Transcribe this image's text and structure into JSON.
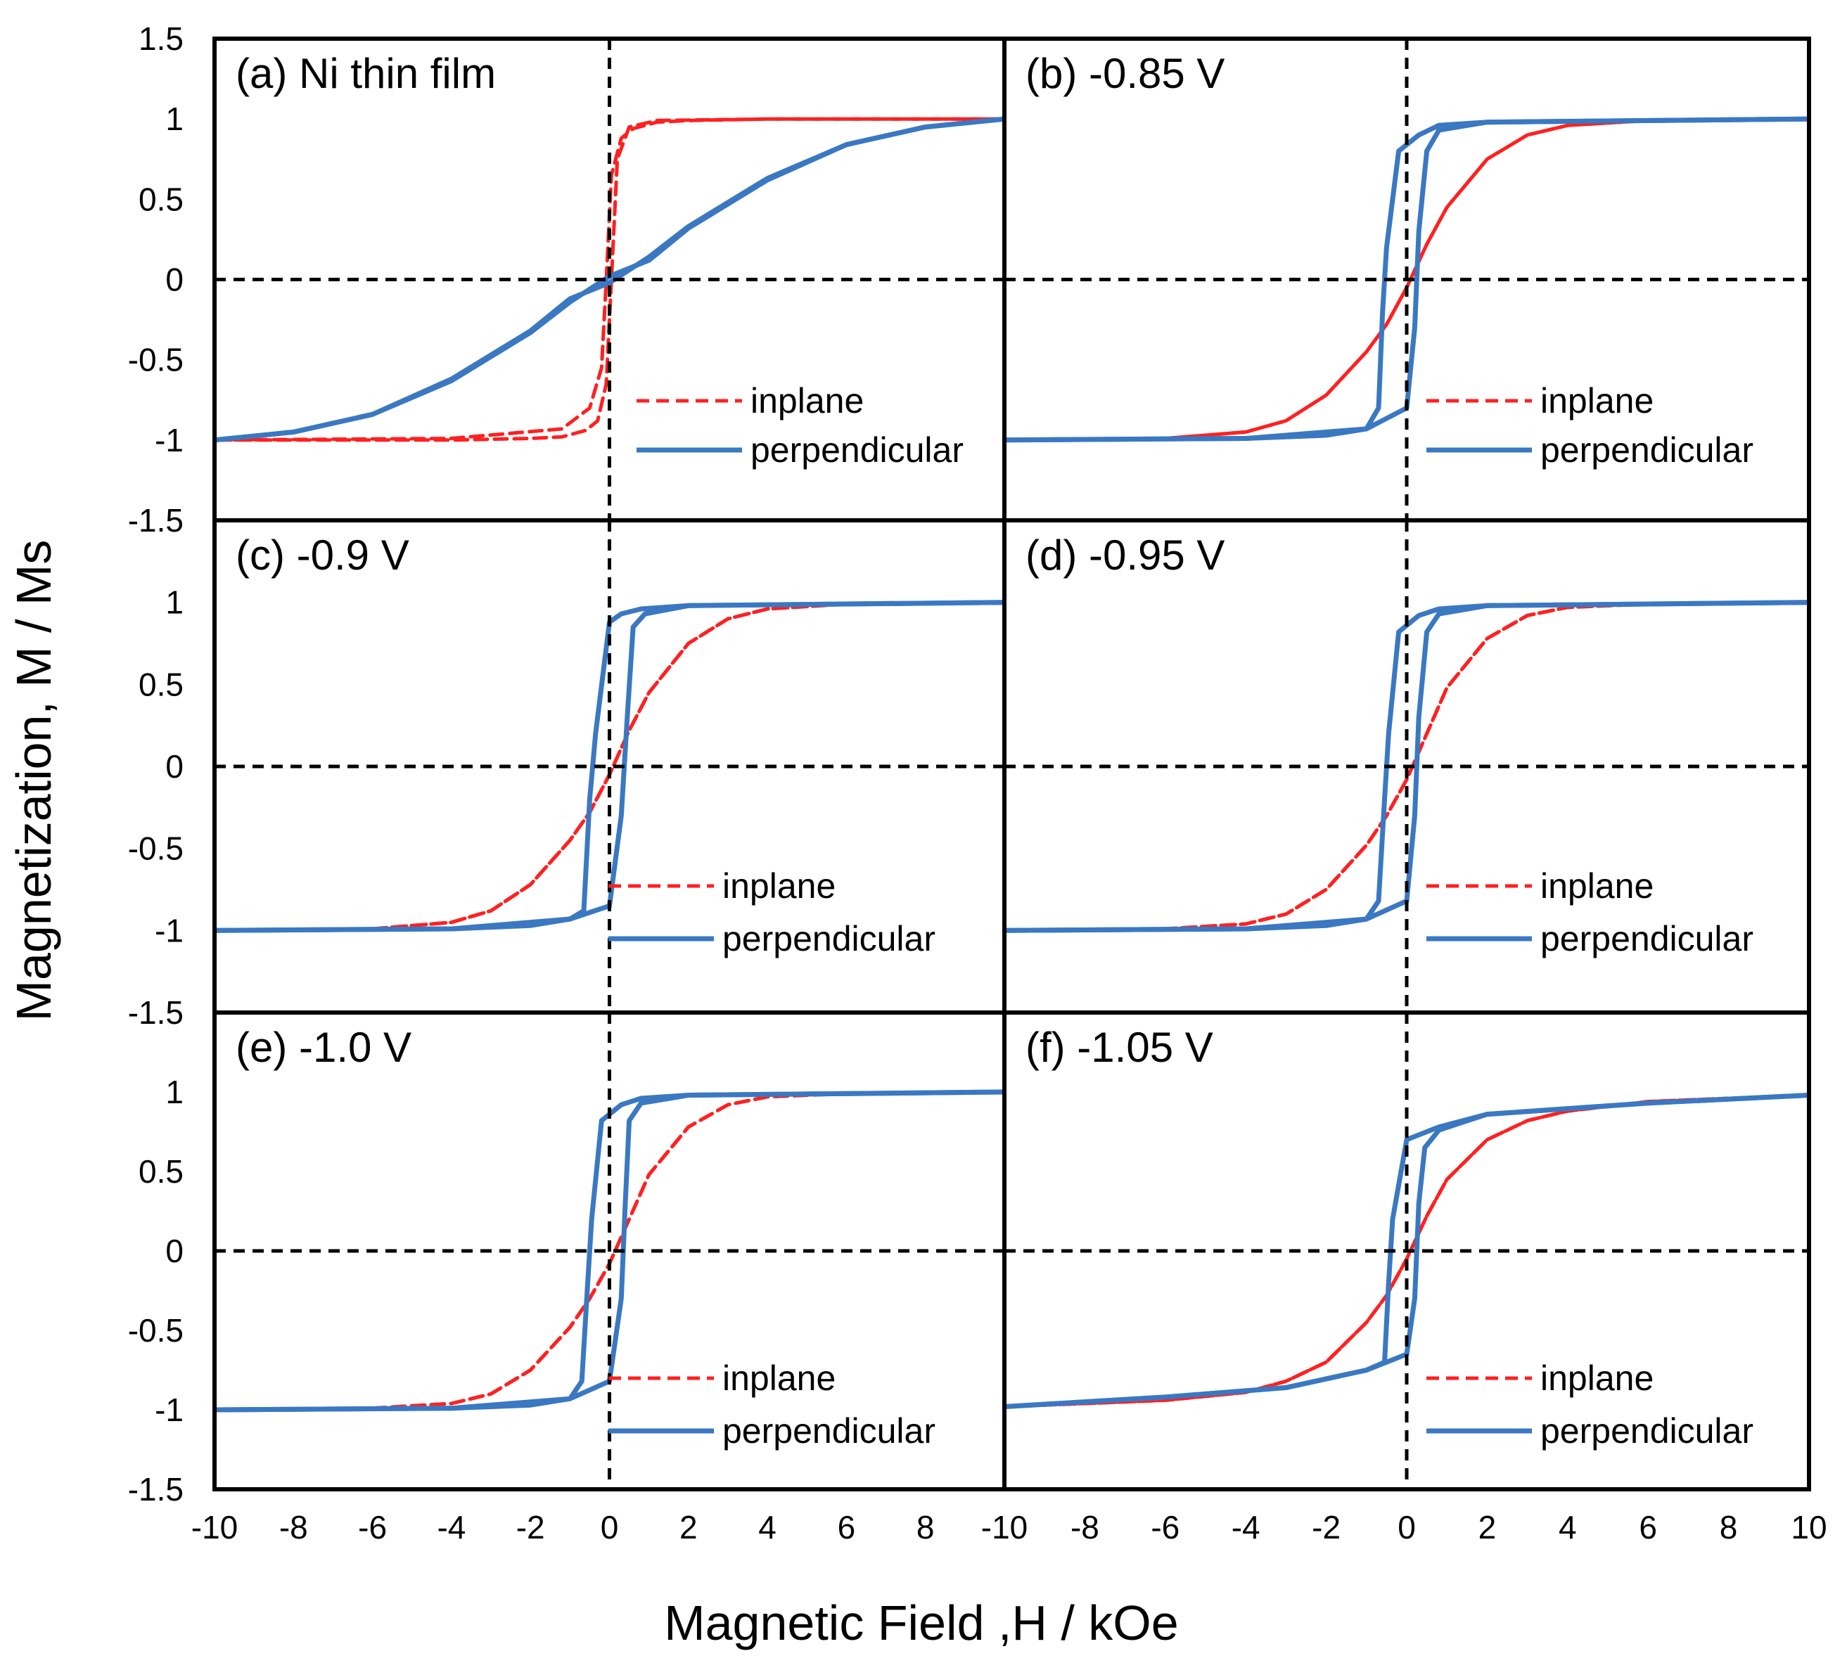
{
  "chart_data": {
    "type": "line",
    "layout": "2x3 grid of hysteresis loops",
    "xlabel": "Magnetic Field ,H / kOe",
    "ylabel": "Magnetization, M / Ms",
    "xlim": [
      -10,
      10
    ],
    "ylim": [
      -1.5,
      1.5
    ],
    "x_ticks": [
      "-10",
      "-8",
      "-6",
      "-4",
      "-2",
      "0",
      "2",
      "4",
      "6",
      "8",
      "10"
    ],
    "y_ticks_top_panel": [
      "1.5",
      "1",
      "0.5",
      "0",
      "-0.5",
      "-1",
      "-1.5"
    ],
    "y_ticks_lower_panels": [
      "1",
      "0.5",
      "0",
      "-0.5",
      "-1",
      "-1.5"
    ],
    "legend": [
      "inplane",
      "perpendicular"
    ],
    "colors": {
      "inplane": "#ff2020",
      "perpendicular": "#3a78c2",
      "axes": "#000000"
    },
    "panels": [
      {
        "id": "a",
        "label": "(a) Ni thin film",
        "series": [
          {
            "name": "inplane",
            "branches": [
              {
                "x": [
                  -10,
                  -4,
                  -1.2,
                  -0.5,
                  -0.2,
                  -0.08,
                  0.05,
                  0.3,
                  0.6,
                  1.2,
                  2,
                  4,
                  10
                ],
                "y": [
                  -1,
                  -0.99,
                  -0.93,
                  -0.8,
                  -0.55,
                  0,
                  0.65,
                  0.88,
                  0.94,
                  0.98,
                  0.99,
                  1,
                  1
                ]
              },
              {
                "x": [
                  10,
                  4,
                  1.2,
                  0.5,
                  0.2,
                  0.05,
                  -0.08,
                  -0.3,
                  -0.6,
                  -1.2,
                  -2,
                  -4,
                  -10
                ],
                "y": [
                  1,
                  1,
                  0.99,
                  0.95,
                  0.75,
                  0,
                  -0.65,
                  -0.88,
                  -0.94,
                  -0.98,
                  -0.99,
                  -1,
                  -1
                ]
              }
            ]
          },
          {
            "name": "perpendicular",
            "branches": [
              {
                "x": [
                  -10,
                  -8,
                  -6,
                  -4,
                  -2,
                  -1,
                  0,
                  1,
                  2,
                  4,
                  6,
                  8,
                  10
                ],
                "y": [
                  -1,
                  -0.95,
                  -0.84,
                  -0.63,
                  -0.33,
                  -0.14,
                  0.02,
                  0.12,
                  0.32,
                  0.62,
                  0.84,
                  0.95,
                  1
                ]
              },
              {
                "x": [
                  10,
                  8,
                  6,
                  4,
                  2,
                  1,
                  0,
                  -1,
                  -2,
                  -4,
                  -6,
                  -8,
                  -10
                ],
                "y": [
                  1,
                  0.95,
                  0.84,
                  0.63,
                  0.33,
                  0.14,
                  -0.02,
                  -0.12,
                  -0.32,
                  -0.62,
                  -0.84,
                  -0.95,
                  -1
                ]
              }
            ]
          }
        ]
      },
      {
        "id": "b",
        "label": "(b) -0.85 V",
        "series": [
          {
            "name": "inplane",
            "branches": [
              {
                "x": [
                  -10,
                  -6,
                  -4,
                  -3,
                  -2,
                  -1,
                  -0.5,
                  0,
                  0.5,
                  1,
                  2,
                  3,
                  4,
                  6,
                  10
                ],
                "y": [
                  -1,
                  -0.99,
                  -0.95,
                  -0.88,
                  -0.72,
                  -0.45,
                  -0.28,
                  -0.05,
                  0.22,
                  0.45,
                  0.75,
                  0.9,
                  0.96,
                  0.99,
                  1
                ]
              },
              {
                "x": [
                  10,
                  6,
                  4,
                  3,
                  2,
                  1,
                  0.5,
                  0,
                  -0.5,
                  -1,
                  -2,
                  -3,
                  -4,
                  -6,
                  -10
                ],
                "y": [
                  1,
                  0.99,
                  0.96,
                  0.9,
                  0.75,
                  0.45,
                  0.22,
                  -0.05,
                  -0.28,
                  -0.45,
                  -0.72,
                  -0.88,
                  -0.95,
                  -0.99,
                  -1
                ]
              }
            ]
          },
          {
            "name": "perpendicular",
            "branches": [
              {
                "x": [
                  -10,
                  -4,
                  -2,
                  -1,
                  0,
                  0.2,
                  0.3,
                  0.5,
                  0.8,
                  2,
                  10
                ],
                "y": [
                  -1,
                  -0.99,
                  -0.97,
                  -0.93,
                  -0.8,
                  -0.3,
                  0.3,
                  0.8,
                  0.93,
                  0.98,
                  1
                ]
              },
              {
                "x": [
                  10,
                  2,
                  0.8,
                  0.3,
                  -0.2,
                  -0.5,
                  -0.6,
                  -0.7,
                  -1,
                  -4,
                  -10
                ],
                "y": [
                  1,
                  0.98,
                  0.96,
                  0.9,
                  0.8,
                  0.2,
                  -0.2,
                  -0.8,
                  -0.93,
                  -0.99,
                  -1
                ]
              }
            ]
          }
        ]
      },
      {
        "id": "c",
        "label": "(c) -0.9 V",
        "series": [
          {
            "name": "inplane",
            "branches": [
              {
                "x": [
                  -10,
                  -6,
                  -4,
                  -3,
                  -2,
                  -1,
                  -0.5,
                  0,
                  0.5,
                  1,
                  2,
                  3,
                  4,
                  6,
                  10
                ],
                "y": [
                  -1,
                  -0.99,
                  -0.95,
                  -0.88,
                  -0.72,
                  -0.45,
                  -0.28,
                  -0.05,
                  0.22,
                  0.45,
                  0.75,
                  0.9,
                  0.96,
                  0.99,
                  1
                ]
              },
              {
                "x": [
                  10,
                  6,
                  4,
                  3,
                  2,
                  1,
                  0.5,
                  0,
                  -0.5,
                  -1,
                  -2,
                  -3,
                  -4,
                  -6,
                  -10
                ],
                "y": [
                  1,
                  0.99,
                  0.96,
                  0.9,
                  0.75,
                  0.45,
                  0.22,
                  -0.05,
                  -0.28,
                  -0.45,
                  -0.72,
                  -0.88,
                  -0.95,
                  -0.99,
                  -1
                ]
              }
            ]
          },
          {
            "name": "perpendicular",
            "branches": [
              {
                "x": [
                  -10,
                  -4,
                  -2,
                  -1,
                  0,
                  0.3,
                  0.45,
                  0.6,
                  0.9,
                  2,
                  10
                ],
                "y": [
                  -1,
                  -0.99,
                  -0.97,
                  -0.93,
                  -0.85,
                  -0.3,
                  0.3,
                  0.85,
                  0.93,
                  0.98,
                  1
                ]
              },
              {
                "x": [
                  10,
                  2,
                  0.8,
                  0.3,
                  0,
                  -0.35,
                  -0.5,
                  -0.65,
                  -1,
                  -4,
                  -10
                ],
                "y": [
                  1,
                  0.98,
                  0.96,
                  0.93,
                  0.88,
                  0.2,
                  -0.2,
                  -0.88,
                  -0.93,
                  -0.99,
                  -1
                ]
              }
            ]
          }
        ]
      },
      {
        "id": "d",
        "label": "(d) -0.95 V",
        "series": [
          {
            "name": "inplane",
            "branches": [
              {
                "x": [
                  -10,
                  -6,
                  -4,
                  -3,
                  -2,
                  -1,
                  -0.5,
                  0,
                  0.5,
                  1,
                  2,
                  3,
                  4,
                  6,
                  10
                ],
                "y": [
                  -1,
                  -0.99,
                  -0.96,
                  -0.9,
                  -0.75,
                  -0.48,
                  -0.3,
                  -0.08,
                  0.2,
                  0.48,
                  0.78,
                  0.92,
                  0.97,
                  0.99,
                  1
                ]
              },
              {
                "x": [
                  10,
                  6,
                  4,
                  3,
                  2,
                  1,
                  0.5,
                  0,
                  -0.5,
                  -1,
                  -2,
                  -3,
                  -4,
                  -6,
                  -10
                ],
                "y": [
                  1,
                  0.99,
                  0.97,
                  0.92,
                  0.78,
                  0.48,
                  0.2,
                  -0.08,
                  -0.3,
                  -0.48,
                  -0.75,
                  -0.9,
                  -0.96,
                  -0.99,
                  -1
                ]
              }
            ]
          },
          {
            "name": "perpendicular",
            "branches": [
              {
                "x": [
                  -10,
                  -4,
                  -2,
                  -1,
                  0,
                  0.2,
                  0.3,
                  0.5,
                  0.8,
                  2,
                  10
                ],
                "y": [
                  -1,
                  -0.99,
                  -0.97,
                  -0.93,
                  -0.82,
                  -0.3,
                  0.3,
                  0.82,
                  0.93,
                  0.98,
                  1
                ]
              },
              {
                "x": [
                  10,
                  2,
                  0.8,
                  0.3,
                  -0.2,
                  -0.45,
                  -0.55,
                  -0.7,
                  -1,
                  -4,
                  -10
                ],
                "y": [
                  1,
                  0.98,
                  0.96,
                  0.92,
                  0.82,
                  0.2,
                  -0.2,
                  -0.82,
                  -0.93,
                  -0.99,
                  -1
                ]
              }
            ]
          }
        ]
      },
      {
        "id": "e",
        "label": "(e) -1.0 V",
        "series": [
          {
            "name": "inplane",
            "branches": [
              {
                "x": [
                  -10,
                  -6,
                  -4,
                  -3,
                  -2,
                  -1,
                  -0.5,
                  0,
                  0.5,
                  1,
                  2,
                  3,
                  4,
                  6,
                  10
                ],
                "y": [
                  -1,
                  -0.99,
                  -0.96,
                  -0.9,
                  -0.75,
                  -0.48,
                  -0.3,
                  -0.08,
                  0.2,
                  0.48,
                  0.78,
                  0.92,
                  0.97,
                  0.99,
                  1
                ]
              },
              {
                "x": [
                  10,
                  6,
                  4,
                  3,
                  2,
                  1,
                  0.5,
                  0,
                  -0.5,
                  -1,
                  -2,
                  -3,
                  -4,
                  -6,
                  -10
                ],
                "y": [
                  1,
                  0.99,
                  0.97,
                  0.92,
                  0.78,
                  0.48,
                  0.2,
                  -0.08,
                  -0.3,
                  -0.48,
                  -0.75,
                  -0.9,
                  -0.96,
                  -0.99,
                  -1
                ]
              }
            ]
          },
          {
            "name": "perpendicular",
            "branches": [
              {
                "x": [
                  -10,
                  -4,
                  -2,
                  -1,
                  0,
                  0.3,
                  0.4,
                  0.5,
                  0.8,
                  2,
                  10
                ],
                "y": [
                  -1,
                  -0.99,
                  -0.97,
                  -0.93,
                  -0.82,
                  -0.3,
                  0.3,
                  0.82,
                  0.93,
                  0.98,
                  1
                ]
              },
              {
                "x": [
                  10,
                  2,
                  0.8,
                  0.3,
                  -0.2,
                  -0.45,
                  -0.55,
                  -0.7,
                  -1,
                  -4,
                  -10
                ],
                "y": [
                  1,
                  0.98,
                  0.96,
                  0.92,
                  0.82,
                  0.2,
                  -0.2,
                  -0.82,
                  -0.93,
                  -0.99,
                  -1
                ]
              }
            ]
          }
        ]
      },
      {
        "id": "f",
        "label": "(f) -1.05 V",
        "series": [
          {
            "name": "inplane",
            "branches": [
              {
                "x": [
                  -10,
                  -6,
                  -4,
                  -3,
                  -2,
                  -1,
                  -0.5,
                  0,
                  0.5,
                  1,
                  2,
                  3,
                  4,
                  6,
                  10
                ],
                "y": [
                  -0.98,
                  -0.94,
                  -0.89,
                  -0.82,
                  -0.7,
                  -0.45,
                  -0.28,
                  -0.05,
                  0.22,
                  0.45,
                  0.7,
                  0.82,
                  0.88,
                  0.94,
                  0.98
                ]
              },
              {
                "x": [
                  10,
                  6,
                  4,
                  3,
                  2,
                  1,
                  0.5,
                  0,
                  -0.5,
                  -1,
                  -2,
                  -3,
                  -4,
                  -6,
                  -10
                ],
                "y": [
                  0.98,
                  0.94,
                  0.88,
                  0.82,
                  0.7,
                  0.45,
                  0.22,
                  -0.05,
                  -0.28,
                  -0.45,
                  -0.7,
                  -0.82,
                  -0.89,
                  -0.94,
                  -0.98
                ]
              }
            ]
          },
          {
            "name": "perpendicular",
            "branches": [
              {
                "x": [
                  -10,
                  -6,
                  -3,
                  -1,
                  0,
                  0.2,
                  0.3,
                  0.45,
                  0.8,
                  2,
                  6,
                  10
                ],
                "y": [
                  -0.98,
                  -0.92,
                  -0.86,
                  -0.75,
                  -0.65,
                  -0.3,
                  0.3,
                  0.65,
                  0.76,
                  0.86,
                  0.93,
                  0.98
                ]
              },
              {
                "x": [
                  10,
                  6,
                  2,
                  0.8,
                  0,
                  -0.35,
                  -0.45,
                  -0.55,
                  -1,
                  -3,
                  -6,
                  -10
                ],
                "y": [
                  0.98,
                  0.93,
                  0.86,
                  0.78,
                  0.7,
                  0.2,
                  -0.2,
                  -0.7,
                  -0.75,
                  -0.86,
                  -0.92,
                  -0.98
                ]
              }
            ]
          }
        ]
      }
    ]
  }
}
